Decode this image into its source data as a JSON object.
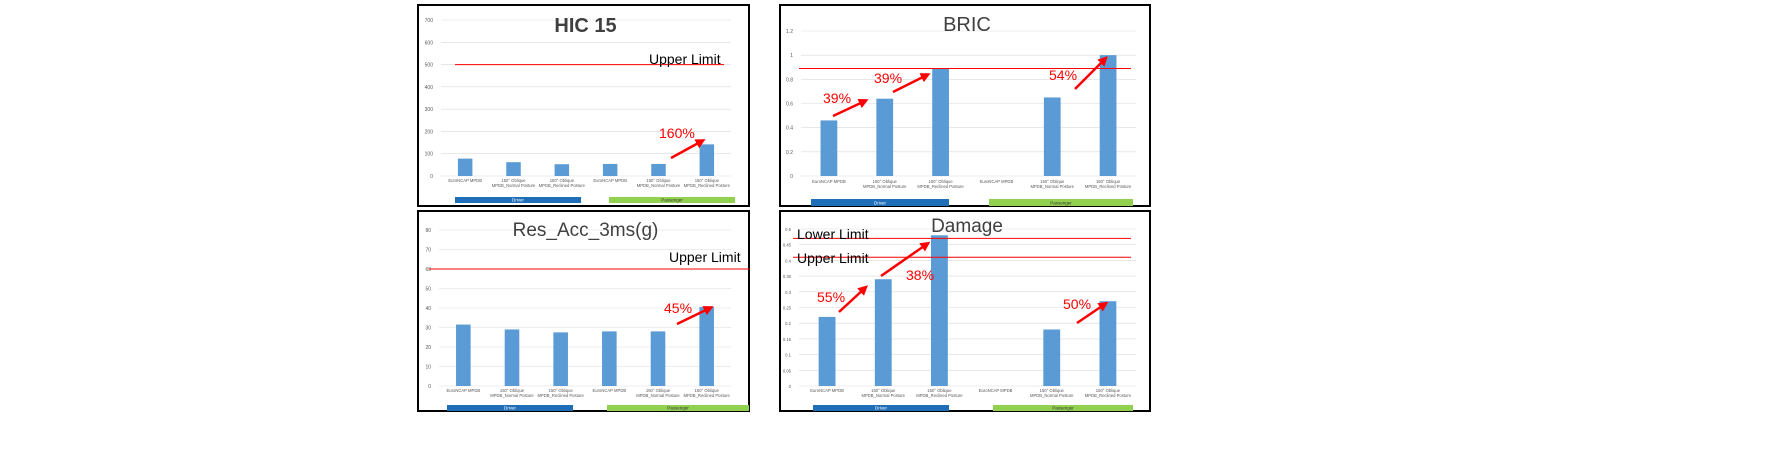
{
  "chart_data": [
    {
      "type": "bar",
      "title": "HIC 15",
      "title_bold": true,
      "categories": [
        "EuroNCAP MPDB",
        "150° Oblique MPDB_Normal Posture",
        "150° Oblique MPDB_Reclined Posture",
        "EuroNCAP MPDB",
        "150° Oblique MPDB_Normal Posture",
        "150° Oblique MPDB_Reclined Posture"
      ],
      "values": [
        78,
        62,
        53,
        54,
        54,
        142
      ],
      "ylim": [
        0,
        700
      ],
      "yticks": [
        "0",
        "100",
        "200",
        "300",
        "400",
        "500",
        "600",
        "700"
      ],
      "limits": [
        {
          "label": "Upper Limit",
          "value": 500
        }
      ],
      "annotations": [
        "160%"
      ],
      "groups": [
        {
          "label": "Driver",
          "color": "#1f6fb8"
        },
        {
          "label": "Passenger",
          "color": "#92d050"
        }
      ],
      "grid": true
    },
    {
      "type": "bar",
      "title": "BRIC",
      "title_bold": false,
      "categories": [
        "EuroNCAP MPDB",
        "150° Oblique MPDB_Normal Posture",
        "150° Oblique MPDB_Reclined Posture",
        "EuroNCAP MPDB",
        "150° Oblique MPDB_Normal Posture",
        "150° Oblique MPDB_Reclined Posture"
      ],
      "values": [
        0.46,
        0.64,
        0.89,
        null,
        0.65,
        1.0
      ],
      "ylim": [
        0,
        1.2
      ],
      "yticks": [
        "0",
        "0.2",
        "0.4",
        "0.6",
        "0.8",
        "1",
        "1.2"
      ],
      "limits": [
        {
          "label": "",
          "value": 0.89
        }
      ],
      "annotations": [
        "39%",
        "39%",
        "54%"
      ],
      "groups": [
        {
          "label": "Driver",
          "color": "#1f6fb8"
        },
        {
          "label": "Passenger",
          "color": "#92d050"
        }
      ],
      "grid": true
    },
    {
      "type": "bar",
      "title": "Res_Acc_3ms(g)",
      "title_bold": false,
      "categories": [
        "EuroNCAP MPDB",
        "150° Oblique MPDB_Normal Posture",
        "150° Oblique MPDB_Reclined Posture",
        "EuroNCAP MPDB",
        "150° Oblique MPDB_Normal Posture",
        "150° Oblique MPDB_Reclined Posture"
      ],
      "values": [
        31.5,
        29,
        27.5,
        28,
        28,
        40.5
      ],
      "ylim": [
        0,
        80
      ],
      "yticks": [
        "0",
        "10",
        "20",
        "30",
        "40",
        "50",
        "60",
        "70",
        "80"
      ],
      "limits": [
        {
          "label": "Upper Limit",
          "value": 60
        }
      ],
      "annotations": [
        "45%"
      ],
      "groups": [
        {
          "label": "Driver",
          "color": "#1f6fb8"
        },
        {
          "label": "Passenger",
          "color": "#92d050"
        }
      ],
      "grid": true
    },
    {
      "type": "bar",
      "title": "Damage",
      "title_bold": false,
      "categories": [
        "EuroNCAP MPDB",
        "150° Oblique MPDB_Normal Posture",
        "150° Oblique MPDB_Reclined Posture",
        "EuroNCAP MPDB",
        "150° Oblique MPDB_Normal Posture",
        "150° Oblique MPDB_Reclined Posture"
      ],
      "values": [
        0.22,
        0.34,
        0.48,
        null,
        0.18,
        0.27
      ],
      "ylim": [
        0,
        0.5
      ],
      "yticks": [
        "0",
        "0.05",
        "0.1",
        "0.15",
        "0.2",
        "0.25",
        "0.3",
        "0.35",
        "0.4",
        "0.45",
        "0.5"
      ],
      "limits": [
        {
          "label": "Lower Limit",
          "value": 0.47
        },
        {
          "label": "Upper Limit",
          "value": 0.41
        }
      ],
      "annotations": [
        "55%",
        "38%",
        "50%"
      ],
      "groups": [
        {
          "label": "Driver",
          "color": "#1f6fb8"
        },
        {
          "label": "Passenger",
          "color": "#92d050"
        }
      ],
      "grid": true
    }
  ],
  "colors": {
    "bar": "#5b9bd5",
    "limit_line": "#ff0000",
    "arrow": "#ff0000",
    "grid": "#d9d9d9"
  }
}
